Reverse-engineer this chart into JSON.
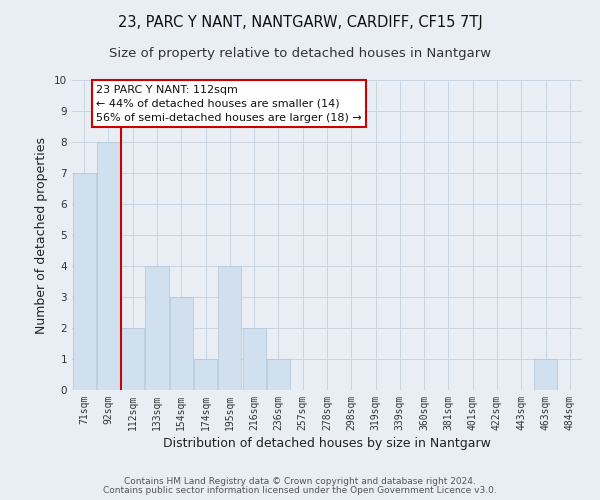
{
  "title": "23, PARC Y NANT, NANTGARW, CARDIFF, CF15 7TJ",
  "subtitle": "Size of property relative to detached houses in Nantgarw",
  "xlabel": "Distribution of detached houses by size in Nantgarw",
  "ylabel": "Number of detached properties",
  "footer_line1": "Contains HM Land Registry data © Crown copyright and database right 2024.",
  "footer_line2": "Contains public sector information licensed under the Open Government Licence v3.0.",
  "bin_labels": [
    "71sqm",
    "92sqm",
    "112sqm",
    "133sqm",
    "154sqm",
    "174sqm",
    "195sqm",
    "216sqm",
    "236sqm",
    "257sqm",
    "278sqm",
    "298sqm",
    "319sqm",
    "339sqm",
    "360sqm",
    "381sqm",
    "401sqm",
    "422sqm",
    "443sqm",
    "463sqm",
    "484sqm"
  ],
  "bar_values": [
    7,
    8,
    2,
    4,
    3,
    1,
    4,
    2,
    1,
    0,
    0,
    0,
    0,
    0,
    0,
    0,
    0,
    0,
    0,
    1,
    0
  ],
  "bar_color": "#d0e0ef",
  "bar_edge_color": "#b0c4d8",
  "vline_x_index": 2,
  "vline_color": "#cc0000",
  "annotation_title": "23 PARC Y NANT: 112sqm",
  "annotation_line1": "← 44% of detached houses are smaller (14)",
  "annotation_line2": "56% of semi-detached houses are larger (18) →",
  "annotation_box_color": "#ffffff",
  "annotation_box_edge": "#cc0000",
  "ylim": [
    0,
    10
  ],
  "yticks": [
    0,
    1,
    2,
    3,
    4,
    5,
    6,
    7,
    8,
    9,
    10
  ],
  "grid_color": "#c8d4e0",
  "bg_color": "#e8eef4",
  "title_fontsize": 10.5,
  "subtitle_fontsize": 9.5,
  "axis_label_fontsize": 9,
  "tick_fontsize": 7,
  "annotation_fontsize": 8,
  "footer_fontsize": 6.5
}
